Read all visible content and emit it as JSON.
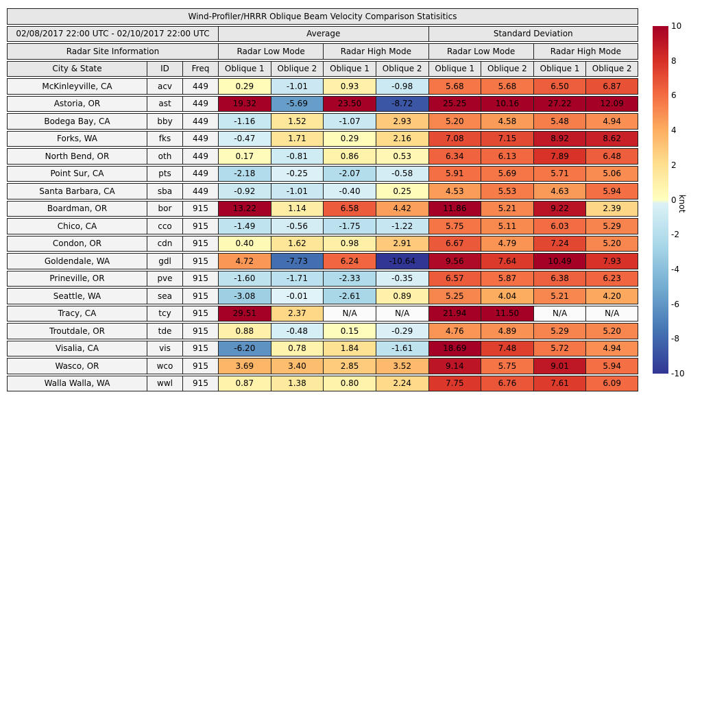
{
  "chart_data": {
    "type": "heatmap",
    "title": "Wind-Profiler/HRRR Oblique Beam Velocity Comparison Statisitics",
    "headers": {
      "date_range": "02/08/2017 22:00 UTC - 02/10/2017 22:00 UTC",
      "average": "Average",
      "std_dev": "Standard Deviation",
      "site_info": "Radar Site Information",
      "low_mode": "Radar Low Mode",
      "high_mode": "Radar High Mode",
      "city": "City & State",
      "id": "ID",
      "freq": "Freq",
      "oblique1": "Oblique 1",
      "oblique2": "Oblique 2"
    },
    "value_columns": [
      "Average Radar Low Mode Oblique 1",
      "Average Radar Low Mode Oblique 2",
      "Average Radar High Mode Oblique 1",
      "Average Radar High Mode Oblique 2",
      "Std Dev Radar Low Mode Oblique 1",
      "Std Dev Radar Low Mode Oblique 2",
      "Std Dev Radar High Mode Oblique 1",
      "Std Dev Radar High Mode Oblique 2"
    ],
    "rows": [
      {
        "city": "McKinleyville, CA",
        "id": "acv",
        "freq": "449",
        "values": [
          0.29,
          -1.01,
          0.93,
          -0.98,
          5.68,
          5.68,
          6.5,
          6.87
        ]
      },
      {
        "city": "Astoria, OR",
        "id": "ast",
        "freq": "449",
        "values": [
          19.32,
          -5.69,
          23.5,
          -8.72,
          25.25,
          10.16,
          27.22,
          12.09
        ]
      },
      {
        "city": "Bodega Bay, CA",
        "id": "bby",
        "freq": "449",
        "values": [
          -1.16,
          1.52,
          -1.07,
          2.93,
          5.2,
          4.58,
          5.48,
          4.94
        ]
      },
      {
        "city": "Forks, WA",
        "id": "fks",
        "freq": "449",
        "values": [
          -0.47,
          1.71,
          0.29,
          2.16,
          7.08,
          7.15,
          8.92,
          8.62
        ]
      },
      {
        "city": "North Bend, OR",
        "id": "oth",
        "freq": "449",
        "values": [
          0.17,
          -0.81,
          0.86,
          0.53,
          6.34,
          6.13,
          7.89,
          6.48
        ]
      },
      {
        "city": "Point Sur, CA",
        "id": "pts",
        "freq": "449",
        "values": [
          -2.18,
          -0.25,
          -2.07,
          -0.58,
          5.91,
          5.69,
          5.71,
          5.06
        ]
      },
      {
        "city": "Santa Barbara, CA",
        "id": "sba",
        "freq": "449",
        "values": [
          -0.92,
          -1.01,
          -0.4,
          0.25,
          4.53,
          5.53,
          4.63,
          5.94
        ]
      },
      {
        "city": "Boardman, OR",
        "id": "bor",
        "freq": "915",
        "values": [
          13.22,
          1.14,
          6.58,
          4.42,
          11.86,
          5.21,
          9.22,
          2.39
        ]
      },
      {
        "city": "Chico, CA",
        "id": "cco",
        "freq": "915",
        "values": [
          -1.49,
          -0.56,
          -1.75,
          -1.22,
          5.75,
          5.11,
          6.03,
          5.29
        ]
      },
      {
        "city": "Condon, OR",
        "id": "cdn",
        "freq": "915",
        "values": [
          0.4,
          1.62,
          0.98,
          2.91,
          6.67,
          4.79,
          7.24,
          5.2
        ]
      },
      {
        "city": "Goldendale, WA",
        "id": "gdl",
        "freq": "915",
        "values": [
          4.72,
          -7.73,
          6.24,
          -10.64,
          9.56,
          7.64,
          10.49,
          7.93
        ]
      },
      {
        "city": "Prineville, OR",
        "id": "pve",
        "freq": "915",
        "values": [
          -1.6,
          -1.71,
          -2.33,
          -0.35,
          6.57,
          5.87,
          6.38,
          6.23
        ]
      },
      {
        "city": "Seattle, WA",
        "id": "sea",
        "freq": "915",
        "values": [
          -3.08,
          -0.01,
          -2.61,
          0.89,
          5.25,
          4.04,
          5.21,
          4.2
        ]
      },
      {
        "city": "Tracy, CA",
        "id": "tcy",
        "freq": "915",
        "values": [
          29.51,
          2.37,
          "N/A",
          "N/A",
          21.94,
          11.5,
          "N/A",
          "N/A"
        ]
      },
      {
        "city": "Troutdale, OR",
        "id": "tde",
        "freq": "915",
        "values": [
          0.88,
          -0.48,
          0.15,
          -0.29,
          4.76,
          4.89,
          5.29,
          5.2
        ]
      },
      {
        "city": "Visalia, CA",
        "id": "vis",
        "freq": "915",
        "values": [
          -6.2,
          0.78,
          1.84,
          -1.61,
          18.69,
          7.48,
          5.72,
          4.94
        ]
      },
      {
        "city": "Wasco, OR",
        "id": "wco",
        "freq": "915",
        "values": [
          3.69,
          3.4,
          2.85,
          3.52,
          9.14,
          5.75,
          9.01,
          5.94
        ]
      },
      {
        "city": "Walla Walla, WA",
        "id": "wwl",
        "freq": "915",
        "values": [
          0.87,
          1.38,
          0.8,
          2.24,
          7.75,
          6.76,
          7.61,
          6.09
        ]
      }
    ],
    "colorbar": {
      "label": "knot",
      "vmin": -10,
      "vmax": 10,
      "ticks": [
        10,
        8,
        6,
        4,
        2,
        0,
        -2,
        -4,
        -6,
        -8,
        -10
      ],
      "colormap": "RdYlBu_r",
      "negative_stops": [
        [
          -10,
          "#313695"
        ],
        [
          -7.5,
          "#4575b4"
        ],
        [
          -5,
          "#74add1"
        ],
        [
          -2.5,
          "#abd9e9"
        ],
        [
          0,
          "#e0f3f8"
        ]
      ],
      "positive_stops": [
        [
          0,
          "#ffffbf"
        ],
        [
          2,
          "#fee090"
        ],
        [
          4,
          "#fdae61"
        ],
        [
          6,
          "#f46d43"
        ],
        [
          8,
          "#d73027"
        ],
        [
          10,
          "#a50026"
        ]
      ],
      "na_color": "#fbfbfb"
    }
  }
}
